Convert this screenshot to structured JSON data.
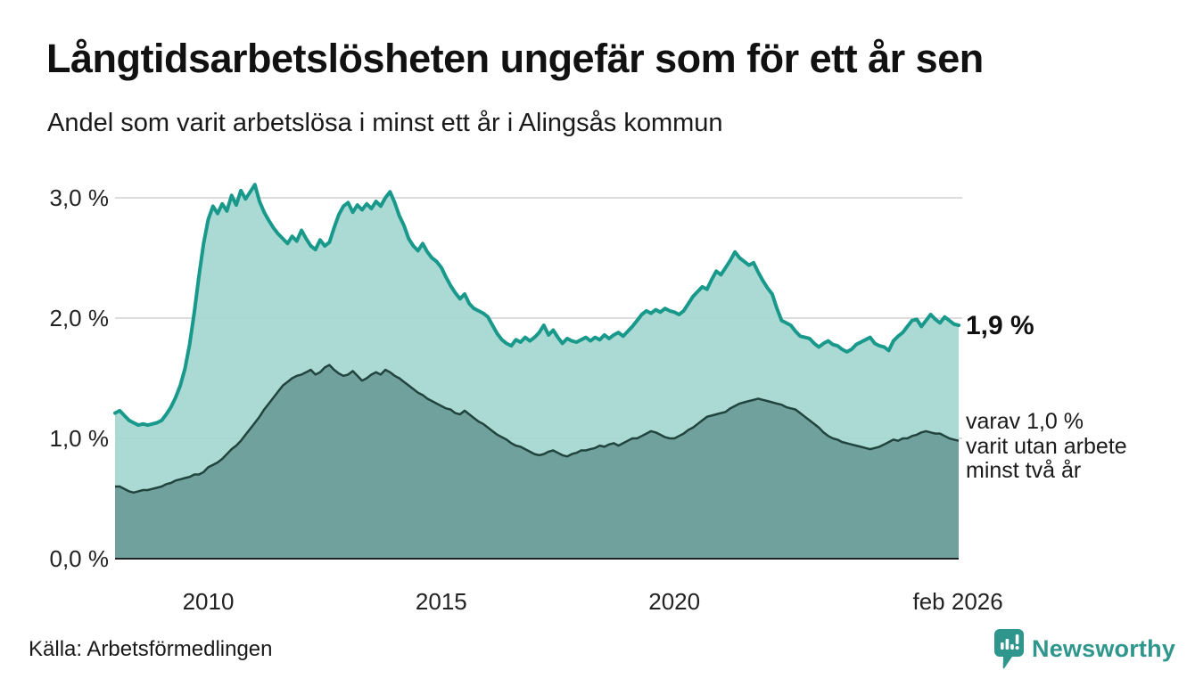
{
  "header": {
    "title": "Långtidsarbetslösheten ungefär som för ett år sen",
    "subtitle": "Andel som varit arbetslösa i minst ett år i Alingsås kommun"
  },
  "chart_data": {
    "type": "area",
    "title": "Långtidsarbetslösheten ungefär som för ett år sen",
    "subtitle": "Andel som varit arbetslösa i minst ett år i Alingsås kommun",
    "ylim": [
      0,
      3.2
    ],
    "grid": true,
    "x_start": 2008.0,
    "x_step": 0.1,
    "x_end_label": "feb 2026",
    "y_ticks": [
      {
        "value": 3,
        "label": "3,0 %"
      },
      {
        "value": 2,
        "label": "2,0 %"
      },
      {
        "value": 1,
        "label": "1,0 %"
      },
      {
        "value": 0,
        "label": "0,0 %"
      }
    ],
    "x_ticks": [
      {
        "year": 2010,
        "label": "2010"
      },
      {
        "year": 2015,
        "label": "2015"
      },
      {
        "year": 2020,
        "label": "2020"
      },
      {
        "year": 2026.083,
        "label": "feb 2026"
      }
    ],
    "colors": {
      "grid": "#dcdcdc",
      "axis": "#222222",
      "line_primary": "#18998b",
      "fill_primary": "#a4d7d0",
      "line_secondary": "#21443f",
      "fill_secondary": "#6e9e99"
    },
    "series": [
      {
        "name": "arbetslösa minst ett år",
        "latest_label": "1,9 %",
        "values": [
          1.21,
          1.23,
          1.19,
          1.15,
          1.13,
          1.11,
          1.12,
          1.11,
          1.12,
          1.13,
          1.15,
          1.2,
          1.26,
          1.34,
          1.44,
          1.58,
          1.78,
          2.05,
          2.35,
          2.62,
          2.82,
          2.93,
          2.87,
          2.95,
          2.89,
          3.02,
          2.94,
          3.06,
          2.99,
          3.05,
          3.11,
          2.97,
          2.88,
          2.81,
          2.75,
          2.7,
          2.66,
          2.62,
          2.68,
          2.64,
          2.73,
          2.66,
          2.6,
          2.57,
          2.65,
          2.6,
          2.63,
          2.75,
          2.86,
          2.93,
          2.96,
          2.88,
          2.94,
          2.9,
          2.95,
          2.91,
          2.97,
          2.93,
          3.0,
          3.05,
          2.96,
          2.85,
          2.77,
          2.66,
          2.6,
          2.56,
          2.62,
          2.55,
          2.5,
          2.47,
          2.42,
          2.34,
          2.27,
          2.21,
          2.16,
          2.2,
          2.12,
          2.08,
          2.06,
          2.04,
          2.01,
          1.94,
          1.87,
          1.82,
          1.79,
          1.77,
          1.82,
          1.8,
          1.84,
          1.81,
          1.84,
          1.88,
          1.94,
          1.86,
          1.9,
          1.84,
          1.79,
          1.83,
          1.81,
          1.8,
          1.82,
          1.84,
          1.81,
          1.84,
          1.82,
          1.86,
          1.83,
          1.86,
          1.88,
          1.85,
          1.89,
          1.93,
          1.98,
          2.03,
          2.06,
          2.04,
          2.07,
          2.05,
          2.08,
          2.06,
          2.05,
          2.03,
          2.06,
          2.12,
          2.18,
          2.22,
          2.26,
          2.24,
          2.32,
          2.39,
          2.36,
          2.42,
          2.48,
          2.55,
          2.5,
          2.47,
          2.44,
          2.46,
          2.38,
          2.31,
          2.25,
          2.2,
          2.08,
          1.98,
          1.96,
          1.94,
          1.89,
          1.85,
          1.84,
          1.83,
          1.79,
          1.76,
          1.79,
          1.81,
          1.78,
          1.77,
          1.74,
          1.72,
          1.74,
          1.78,
          1.8,
          1.82,
          1.84,
          1.79,
          1.77,
          1.76,
          1.73,
          1.81,
          1.85,
          1.88,
          1.93,
          1.98,
          1.99,
          1.93,
          1.98,
          2.03,
          1.99,
          1.96,
          2.01,
          1.98,
          1.95,
          1.94
        ]
      },
      {
        "name": "varit utan arbete minst två år",
        "latest_label": "1,0 %",
        "values": [
          0.6,
          0.6,
          0.58,
          0.56,
          0.55,
          0.56,
          0.57,
          0.57,
          0.58,
          0.59,
          0.6,
          0.62,
          0.63,
          0.65,
          0.66,
          0.67,
          0.68,
          0.7,
          0.7,
          0.72,
          0.76,
          0.78,
          0.8,
          0.83,
          0.87,
          0.91,
          0.94,
          0.98,
          1.03,
          1.08,
          1.13,
          1.18,
          1.24,
          1.29,
          1.34,
          1.39,
          1.44,
          1.47,
          1.5,
          1.52,
          1.53,
          1.55,
          1.57,
          1.53,
          1.55,
          1.59,
          1.61,
          1.57,
          1.54,
          1.52,
          1.53,
          1.56,
          1.52,
          1.48,
          1.5,
          1.53,
          1.55,
          1.53,
          1.57,
          1.55,
          1.52,
          1.5,
          1.47,
          1.44,
          1.41,
          1.38,
          1.36,
          1.33,
          1.31,
          1.29,
          1.27,
          1.25,
          1.24,
          1.21,
          1.2,
          1.23,
          1.2,
          1.17,
          1.14,
          1.12,
          1.09,
          1.06,
          1.03,
          1.01,
          0.99,
          0.96,
          0.94,
          0.93,
          0.91,
          0.89,
          0.87,
          0.86,
          0.87,
          0.89,
          0.9,
          0.88,
          0.86,
          0.85,
          0.87,
          0.88,
          0.9,
          0.9,
          0.91,
          0.92,
          0.94,
          0.93,
          0.95,
          0.96,
          0.94,
          0.96,
          0.98,
          1.0,
          1.0,
          1.02,
          1.04,
          1.06,
          1.05,
          1.03,
          1.01,
          1.0,
          1.0,
          1.02,
          1.04,
          1.07,
          1.09,
          1.12,
          1.15,
          1.18,
          1.19,
          1.2,
          1.21,
          1.22,
          1.25,
          1.27,
          1.29,
          1.3,
          1.31,
          1.32,
          1.33,
          1.32,
          1.31,
          1.3,
          1.29,
          1.28,
          1.26,
          1.25,
          1.24,
          1.21,
          1.18,
          1.15,
          1.12,
          1.09,
          1.05,
          1.02,
          1.0,
          0.99,
          0.97,
          0.96,
          0.95,
          0.94,
          0.93,
          0.92,
          0.91,
          0.92,
          0.93,
          0.95,
          0.97,
          0.99,
          0.98,
          1.0,
          1.0,
          1.02,
          1.03,
          1.05,
          1.06,
          1.05,
          1.04,
          1.04,
          1.02,
          1.0,
          0.99,
          0.98
        ]
      }
    ],
    "end_labels": {
      "primary": "1,9 %",
      "secondary": [
        "varav 1,0 %",
        "varit utan arbete",
        "minst två år"
      ]
    }
  },
  "footer": {
    "source": "Källa: Arbetsförmedlingen",
    "brand": "Newsworthy",
    "brand_color": "#2E968C"
  }
}
